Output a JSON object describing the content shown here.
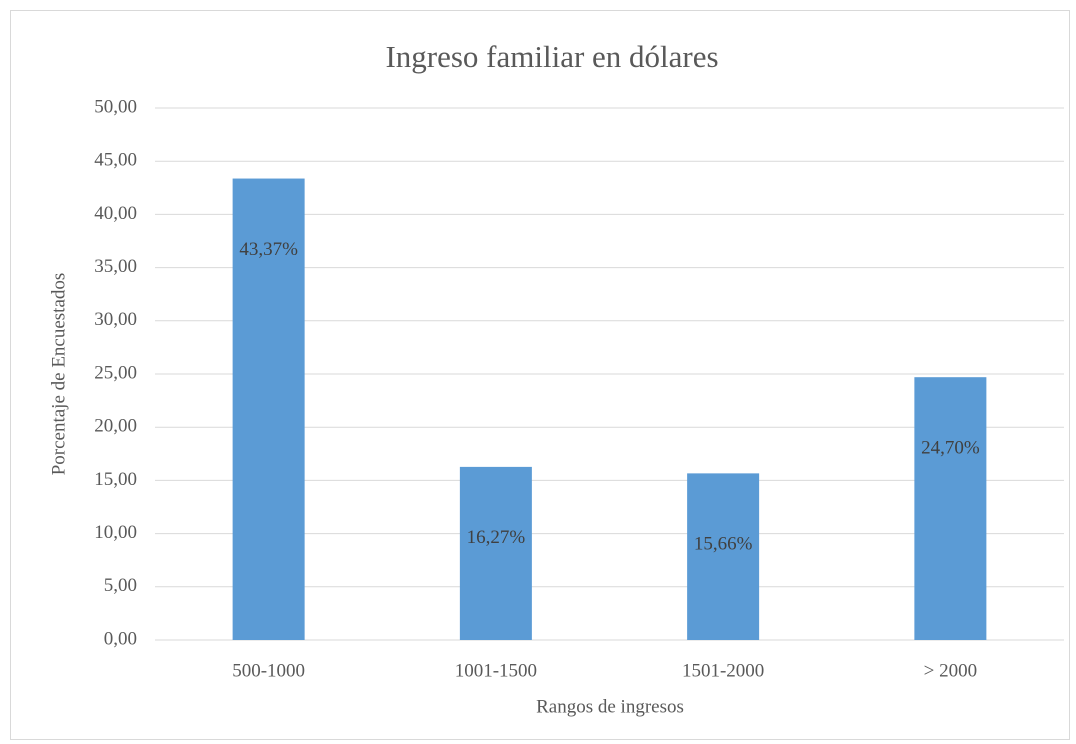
{
  "chart_data": {
    "type": "bar",
    "title": "Ingreso familiar en dólares",
    "x_label": "Rangos de ingresos",
    "y_label": "Porcentaje de Encuestados",
    "categories": [
      "500-1000",
      "1001-1500",
      "1501-2000",
      "> 2000"
    ],
    "values": [
      43.37,
      16.27,
      15.66,
      24.7
    ],
    "value_labels": [
      "43,37%",
      "16,27%",
      "15,66%",
      "24,70%"
    ],
    "color": "#5b9bd5",
    "ylim": [
      0,
      50
    ],
    "yticks": [
      {
        "value": 0,
        "label": "0,00"
      },
      {
        "value": 5,
        "label": "5,00"
      },
      {
        "value": 10,
        "label": "10,00"
      },
      {
        "value": 15,
        "label": "15,00"
      },
      {
        "value": 20,
        "label": "20,00"
      },
      {
        "value": 25,
        "label": "25,00"
      },
      {
        "value": 30,
        "label": "30,00"
      },
      {
        "value": 35,
        "label": "35,00"
      },
      {
        "value": 40,
        "label": "40,00"
      },
      {
        "value": 45,
        "label": "45,00"
      },
      {
        "value": 50,
        "label": "50,00"
      }
    ],
    "grid": true
  }
}
